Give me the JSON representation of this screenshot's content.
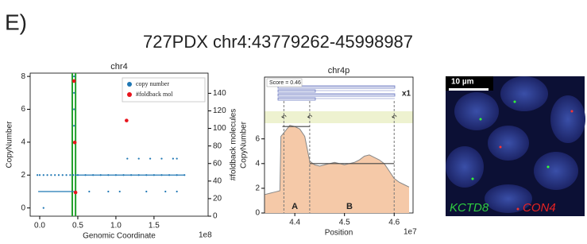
{
  "panel_label": "E)",
  "title": "727PDX chr4:43779262-45998987",
  "chart_data": [
    {
      "type": "scatter",
      "title": "chr4",
      "xlabel": "Genomic Coordinate",
      "x_offset": "1e8",
      "ylabel": "CopyNumber",
      "y2label": "#foldback molecules",
      "xlim": [
        -0.125,
        2.21
      ],
      "xticks": [
        {
          "value": 0,
          "label": "0.0"
        },
        0.5,
        {
          "value": 1,
          "label": "1.0"
        },
        1.5
      ],
      "ylim": [
        -0.5,
        8.2
      ],
      "yticks": [
        0,
        2,
        4,
        6,
        8
      ],
      "y2lim": [
        0,
        163
      ],
      "y2ticks": [
        0,
        20,
        40,
        60,
        80,
        100,
        120,
        140
      ],
      "legend": "upper right",
      "highlight": [
        0.4378,
        0.46
      ],
      "series": [
        {
          "name": "copy number",
          "color": "#1f77b4",
          "x": [
            -0.03,
            0,
            0.05,
            0.1,
            0.15,
            0.2,
            0.25,
            0.3,
            0.35,
            0.4,
            0.44,
            0.5,
            0.6,
            0.7,
            0.8,
            0.9,
            1.0,
            1.1,
            1.2,
            1.3,
            1.4,
            1.5,
            1.6,
            1.7,
            1.8,
            1.9,
            1.15,
            1.3,
            1.45,
            1.6,
            1.75,
            1.8,
            0.65,
            0.9,
            1.05,
            1.4,
            1.65,
            1.8,
            0.05,
            0.45,
            0.45,
            0.45,
            0.45
          ],
          "values": [
            2,
            2,
            2,
            2,
            2,
            2,
            2,
            2,
            2,
            2,
            2,
            2,
            2,
            2,
            2,
            2,
            2,
            2,
            2,
            2,
            2,
            2,
            2,
            2,
            2,
            2,
            3,
            3,
            3,
            3,
            3,
            3,
            1,
            1,
            1,
            1,
            1,
            1,
            0,
            5,
            6,
            7,
            8
          ]
        },
        {
          "name": "#foldback mol",
          "color": "#e8141c",
          "axis": "y2",
          "x": [
            0.45,
            0.46,
            1.14,
            0.47
          ],
          "values": [
            154,
            84,
            109,
            27
          ]
        }
      ],
      "segments": [
        {
          "x": [
            -0.02,
            0.46
          ],
          "values": [
            1,
            1
          ]
        },
        {
          "x": [
            0.46,
            1.9
          ],
          "values": [
            2,
            2
          ]
        }
      ]
    },
    {
      "type": "area",
      "title": "chr4p",
      "xlabel": "Position",
      "x_offset": "1e7",
      "ylabel": "CopyNumber",
      "xlim": [
        4.339,
        4.638
      ],
      "xticks": [
        4.4,
        4.5,
        4.6
      ],
      "ylim": [
        0,
        11
      ],
      "yticks": [
        0,
        2,
        4,
        6
      ],
      "score": "Score = 0.46",
      "multiplicity": "x1",
      "color": "#f5c9a8",
      "x": [
        4.34,
        4.35,
        4.36,
        4.37,
        4.372,
        4.38,
        4.39,
        4.4,
        4.41,
        4.42,
        4.43,
        4.44,
        4.45,
        4.46,
        4.47,
        4.48,
        4.49,
        4.5,
        4.51,
        4.52,
        4.53,
        4.54,
        4.55,
        4.56,
        4.57,
        4.58,
        4.59,
        4.6,
        4.61,
        4.62,
        4.63
      ],
      "values": [
        1.5,
        1.6,
        1.7,
        1.8,
        6.2,
        6.6,
        7.1,
        7.0,
        6.8,
        6.2,
        4.2,
        3.9,
        3.8,
        3.9,
        4.0,
        4.1,
        4.0,
        3.9,
        4.0,
        4.1,
        4.3,
        4.6,
        4.7,
        4.5,
        4.3,
        4.0,
        3.4,
        2.8,
        2.5,
        2.3,
        2.1
      ],
      "segments": [
        {
          "x": [
            4.375,
            4.43
          ],
          "values": [
            7.0,
            7.0
          ]
        },
        {
          "x": [
            4.43,
            4.6
          ],
          "values": [
            4.0,
            4.0
          ]
        }
      ],
      "breakpoints": [
        4.378,
        4.43,
        4.6
      ],
      "annotations": [
        {
          "text": "A",
          "x": 4.4
        },
        {
          "text": "B",
          "x": 4.51
        }
      ]
    }
  ],
  "image": {
    "scale_bar": "10 µm",
    "labels": [
      "KCTD8",
      "CON4"
    ]
  }
}
